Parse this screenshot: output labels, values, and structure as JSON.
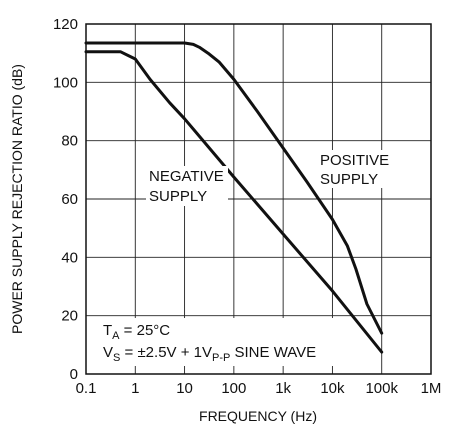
{
  "chart_data": {
    "type": "line",
    "xlabel": "FREQUENCY (Hz)",
    "ylabel": "POWER SUPPLY REJECTION RATIO (dB)",
    "xscale": "log",
    "xlim": [
      0.1,
      1000000
    ],
    "ylim": [
      0,
      120
    ],
    "grid": true,
    "x_ticks": [
      0.1,
      1,
      10,
      100,
      1000,
      10000,
      100000,
      1000000
    ],
    "x_tick_labels": [
      "0.1",
      "1",
      "10",
      "100",
      "1k",
      "10k",
      "100k",
      "1M"
    ],
    "y_ticks": [
      0,
      20,
      40,
      60,
      80,
      100,
      120
    ],
    "y_tick_labels": [
      "0",
      "20",
      "40",
      "60",
      "80",
      "100",
      "120"
    ],
    "series": [
      {
        "name": "POSITIVE SUPPLY",
        "x": [
          0.1,
          1,
          10,
          15,
          20,
          30,
          50,
          100,
          300,
          1000,
          3000,
          10000,
          20000,
          30000,
          50000,
          100000
        ],
        "y": [
          113.5,
          113.5,
          113.5,
          113,
          112,
          110,
          107,
          101,
          90,
          77.5,
          66,
          53,
          44,
          36,
          24,
          14
        ]
      },
      {
        "name": "NEGATIVE SUPPLY",
        "x": [
          0.1,
          0.5,
          1,
          2,
          5,
          10,
          100,
          1000,
          10000,
          100000
        ],
        "y": [
          110.5,
          110.5,
          108,
          101,
          93,
          87.5,
          67.5,
          48,
          28.5,
          7.5
        ]
      }
    ],
    "labels": {
      "positive_line1": "POSITIVE",
      "positive_line2": "SUPPLY",
      "negative_line1": "NEGATIVE",
      "negative_line2": "SUPPLY"
    },
    "annotations": {
      "ta_main": "T",
      "ta_sub": "A",
      "ta_rest": " = 25°C",
      "vs_main": "V",
      "vs_sub": "S",
      "vs_mid": " = ±2.5V + 1V",
      "vs_sub2": "P-P",
      "vs_rest": " SINE WAVE"
    }
  }
}
